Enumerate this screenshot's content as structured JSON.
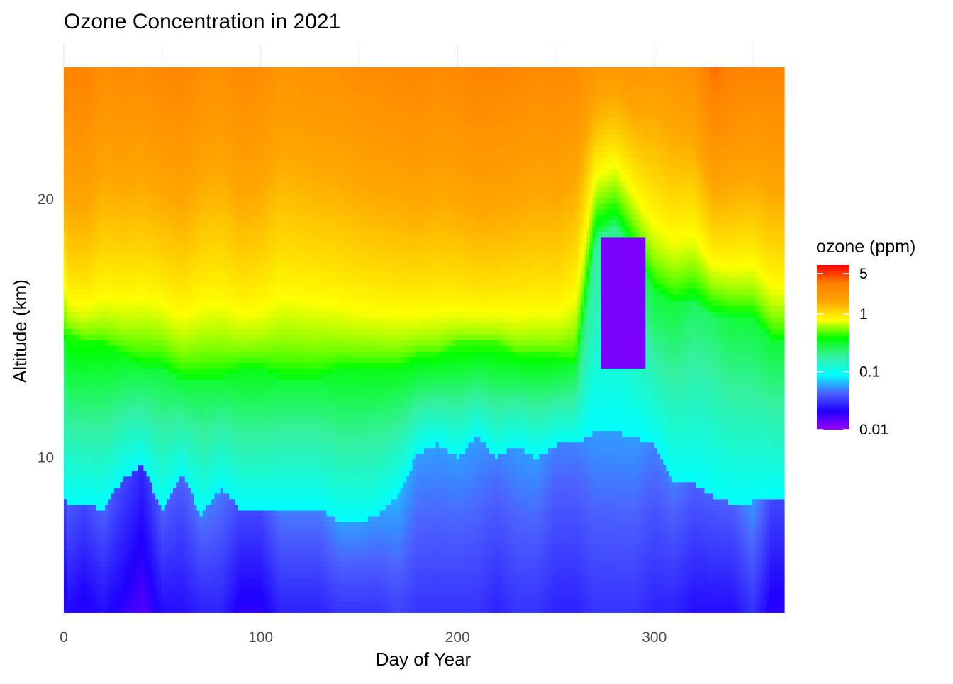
{
  "chart_data": {
    "type": "heatmap",
    "title": "Ozone Concentration in 2021",
    "xlabel": "Day of Year",
    "ylabel": "Altitude (km)",
    "xlim": [
      0,
      366
    ],
    "ylim": [
      3.9,
      26
    ],
    "x_ticks": [
      0,
      100,
      200,
      300
    ],
    "y_ticks": [
      10,
      20
    ],
    "grid": true,
    "legend": {
      "title": "ozone (ppm)",
      "placement": "right",
      "scale": "log",
      "range": [
        0.01,
        7
      ],
      "ticks": [
        {
          "value": 5,
          "label": "5"
        },
        {
          "value": 1,
          "label": "1"
        },
        {
          "value": 0.1,
          "label": "0.1"
        },
        {
          "value": 0.01,
          "label": "0.01"
        }
      ],
      "colors": [
        "#9900FF",
        "#1F00FF",
        "#4C63FF",
        "#00FFFF",
        "#35F0A0",
        "#00FF00",
        "#FFFF00",
        "#FFA500",
        "#FF7F00",
        "#FF0000"
      ]
    },
    "data_extent": {
      "x": [
        0,
        366
      ],
      "y": [
        4,
        25.1
      ]
    },
    "profiles": [
      {
        "day": 1,
        "o3_top": 3.0,
        "mid_alt": 15.0,
        "o3_mid": 0.45,
        "trop_top": 8.3,
        "o3_trop": 0.03
      },
      {
        "day": 10,
        "o3_top": 3.2,
        "mid_alt": 14.5,
        "o3_mid": 0.4,
        "trop_top": 8.2,
        "o3_trop": 0.025
      },
      {
        "day": 20,
        "o3_top": 2.5,
        "mid_alt": 14.5,
        "o3_mid": 0.4,
        "trop_top": 8.0,
        "o3_trop": 0.03
      },
      {
        "day": 30,
        "o3_top": 2.7,
        "mid_alt": 14.0,
        "o3_mid": 0.35,
        "trop_top": 9.2,
        "o3_trop": 0.025
      },
      {
        "day": 40,
        "o3_top": 2.6,
        "mid_alt": 13.5,
        "o3_mid": 0.3,
        "trop_top": 9.7,
        "o3_trop": 0.02
      },
      {
        "day": 50,
        "o3_top": 2.9,
        "mid_alt": 13.5,
        "o3_mid": 0.3,
        "trop_top": 8.0,
        "o3_trop": 0.03
      },
      {
        "day": 60,
        "o3_top": 3.0,
        "mid_alt": 13.0,
        "o3_mid": 0.3,
        "trop_top": 9.3,
        "o3_trop": 0.03
      },
      {
        "day": 70,
        "o3_top": 2.5,
        "mid_alt": 13.0,
        "o3_mid": 0.3,
        "trop_top": 7.8,
        "o3_trop": 0.035
      },
      {
        "day": 80,
        "o3_top": 2.4,
        "mid_alt": 13.0,
        "o3_mid": 0.3,
        "trop_top": 8.8,
        "o3_trop": 0.035
      },
      {
        "day": 90,
        "o3_top": 2.8,
        "mid_alt": 13.5,
        "o3_mid": 0.35,
        "trop_top": 8.0,
        "o3_trop": 0.025
      },
      {
        "day": 100,
        "o3_top": 2.6,
        "mid_alt": 13.5,
        "o3_mid": 0.35,
        "trop_top": 8.0,
        "o3_trop": 0.025
      },
      {
        "day": 110,
        "o3_top": 2.2,
        "mid_alt": 13.0,
        "o3_mid": 0.3,
        "trop_top": 8.0,
        "o3_trop": 0.035
      },
      {
        "day": 120,
        "o3_top": 2.3,
        "mid_alt": 13.0,
        "o3_mid": 0.3,
        "trop_top": 8.0,
        "o3_trop": 0.035
      },
      {
        "day": 130,
        "o3_top": 2.4,
        "mid_alt": 13.0,
        "o3_mid": 0.3,
        "trop_top": 8.0,
        "o3_trop": 0.035
      },
      {
        "day": 140,
        "o3_top": 2.4,
        "mid_alt": 13.5,
        "o3_mid": 0.35,
        "trop_top": 7.5,
        "o3_trop": 0.04
      },
      {
        "day": 150,
        "o3_top": 2.6,
        "mid_alt": 13.5,
        "o3_mid": 0.35,
        "trop_top": 7.5,
        "o3_trop": 0.04
      },
      {
        "day": 160,
        "o3_top": 2.7,
        "mid_alt": 13.5,
        "o3_mid": 0.35,
        "trop_top": 7.8,
        "o3_trop": 0.04
      },
      {
        "day": 170,
        "o3_top": 2.8,
        "mid_alt": 13.5,
        "o3_mid": 0.35,
        "trop_top": 8.6,
        "o3_trop": 0.045
      },
      {
        "day": 180,
        "o3_top": 2.9,
        "mid_alt": 14.0,
        "o3_mid": 0.4,
        "trop_top": 10.2,
        "o3_trop": 0.04
      },
      {
        "day": 190,
        "o3_top": 2.7,
        "mid_alt": 14.0,
        "o3_mid": 0.4,
        "trop_top": 10.5,
        "o3_trop": 0.04
      },
      {
        "day": 200,
        "o3_top": 2.8,
        "mid_alt": 14.5,
        "o3_mid": 0.45,
        "trop_top": 10.0,
        "o3_trop": 0.04
      },
      {
        "day": 210,
        "o3_top": 3.1,
        "mid_alt": 14.5,
        "o3_mid": 0.45,
        "trop_top": 10.8,
        "o3_trop": 0.04
      },
      {
        "day": 220,
        "o3_top": 3.0,
        "mid_alt": 14.5,
        "o3_mid": 0.45,
        "trop_top": 10.0,
        "o3_trop": 0.035
      },
      {
        "day": 230,
        "o3_top": 2.9,
        "mid_alt": 14.0,
        "o3_mid": 0.4,
        "trop_top": 10.5,
        "o3_trop": 0.04
      },
      {
        "day": 240,
        "o3_top": 2.7,
        "mid_alt": 14.0,
        "o3_mid": 0.4,
        "trop_top": 10.0,
        "o3_trop": 0.04
      },
      {
        "day": 250,
        "o3_top": 2.8,
        "mid_alt": 14.0,
        "o3_mid": 0.4,
        "trop_top": 10.5,
        "o3_trop": 0.035
      },
      {
        "day": 260,
        "o3_top": 2.6,
        "mid_alt": 13.5,
        "o3_mid": 0.3,
        "trop_top": 10.5,
        "o3_trop": 0.035
      },
      {
        "day": 270,
        "o3_top": 2.2,
        "mid_alt": 18.5,
        "o3_mid": 0.2,
        "trop_top": 11.0,
        "o3_trop": 0.04
      },
      {
        "day": 280,
        "o3_top": 2.0,
        "mid_alt": 19.0,
        "o3_mid": 0.2,
        "trop_top": 11.0,
        "o3_trop": 0.04
      },
      {
        "day": 290,
        "o3_top": 2.2,
        "mid_alt": 18.0,
        "o3_mid": 0.25,
        "trop_top": 10.8,
        "o3_trop": 0.04
      },
      {
        "day": 300,
        "o3_top": 2.0,
        "mid_alt": 16.5,
        "o3_mid": 0.3,
        "trop_top": 10.5,
        "o3_trop": 0.035
      },
      {
        "day": 310,
        "o3_top": 2.2,
        "mid_alt": 16.0,
        "o3_mid": 0.3,
        "trop_top": 9.0,
        "o3_trop": 0.035
      },
      {
        "day": 320,
        "o3_top": 2.4,
        "mid_alt": 16.0,
        "o3_mid": 0.25,
        "trop_top": 9.0,
        "o3_trop": 0.03
      },
      {
        "day": 330,
        "o3_top": 3.8,
        "mid_alt": 15.5,
        "o3_mid": 0.25,
        "trop_top": 8.5,
        "o3_trop": 0.03
      },
      {
        "day": 340,
        "o3_top": 3.2,
        "mid_alt": 15.5,
        "o3_mid": 0.3,
        "trop_top": 8.2,
        "o3_trop": 0.03
      },
      {
        "day": 350,
        "o3_top": 3.0,
        "mid_alt": 15.5,
        "o3_mid": 0.3,
        "trop_top": 8.3,
        "o3_trop": 0.04
      },
      {
        "day": 360,
        "o3_top": 3.1,
        "mid_alt": 14.5,
        "o3_mid": 0.3,
        "trop_top": 8.5,
        "o3_trop": 0.025
      },
      {
        "day": 366,
        "o3_top": 3.1,
        "mid_alt": 14.5,
        "o3_mid": 0.3,
        "trop_top": 8.5,
        "o3_trop": 0.025
      }
    ],
    "depletion_region": {
      "day_range": [
        272,
        295
      ],
      "alt_range": [
        13.5,
        18.5
      ],
      "value": 0.012
    }
  }
}
